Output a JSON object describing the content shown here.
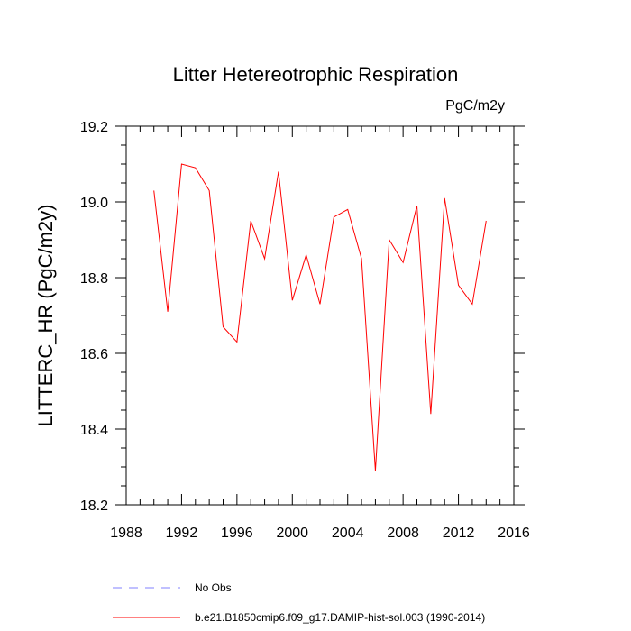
{
  "chart_data": {
    "type": "line",
    "title": "Litter Hetereotrophic Respiration",
    "units_label": "PgC/m2y",
    "ylabel": "LITTERC_HR  (PgC/m2y)",
    "xlabel": "",
    "xlim": [
      1988,
      2016
    ],
    "ylim": [
      18.2,
      19.2
    ],
    "x_ticks": [
      1988,
      1992,
      1996,
      2000,
      2004,
      2008,
      2012,
      2016
    ],
    "x_tick_labels": [
      "1988",
      "1992",
      "1996",
      "2000",
      "2004",
      "2008",
      "2012",
      "2016"
    ],
    "y_ticks": [
      18.2,
      18.4,
      18.6,
      18.8,
      19.0,
      19.2
    ],
    "y_tick_labels": [
      "18.2",
      "18.4",
      "18.6",
      "18.8",
      "19.0",
      "19.2"
    ],
    "grid": false,
    "series": [
      {
        "name": "b.e21.B1850cmip6.f09_g17.DAMIP-hist-sol.003 (1990-2014)",
        "color": "#ff0000",
        "x": [
          1990,
          1991,
          1992,
          1993,
          1994,
          1995,
          1996,
          1997,
          1998,
          1999,
          2000,
          2001,
          2002,
          2003,
          2004,
          2005,
          2006,
          2007,
          2008,
          2009,
          2010,
          2011,
          2012,
          2013,
          2014
        ],
        "y": [
          19.03,
          18.71,
          19.1,
          19.09,
          19.03,
          18.67,
          18.63,
          18.95,
          18.85,
          19.08,
          18.74,
          18.86,
          18.73,
          18.96,
          18.98,
          18.85,
          18.29,
          18.9,
          18.84,
          18.99,
          18.44,
          19.01,
          18.78,
          18.73,
          18.95
        ]
      }
    ],
    "legend": {
      "position": "bottom-left",
      "entries": [
        {
          "label": "No Obs",
          "color": "#8080ff",
          "style": "dashed"
        },
        {
          "label": "b.e21.B1850cmip6.f09_g17.DAMIP-hist-sol.003 (1990-2014)",
          "color": "#ff0000",
          "style": "solid"
        }
      ]
    }
  }
}
